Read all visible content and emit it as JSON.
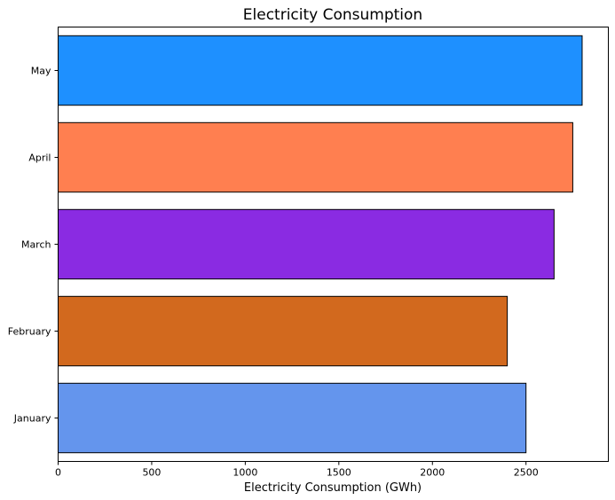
{
  "chart_data": {
    "type": "bar",
    "orientation": "horizontal",
    "title": "Electricity Consumption",
    "xlabel": "Electricity Consumption (GWh)",
    "ylabel": "",
    "categories": [
      "January",
      "February",
      "March",
      "April",
      "May"
    ],
    "values": [
      2500,
      2400,
      2650,
      2750,
      2800
    ],
    "colors": [
      "#6495ED",
      "#D2691E",
      "#8A2BE2",
      "#FF7F50",
      "#1E90FF"
    ],
    "edge_color": "#000000",
    "xlim": [
      0,
      2940
    ],
    "xticks": [
      0,
      500,
      1000,
      1500,
      2000,
      2500
    ],
    "grid": false,
    "legend": "none"
  }
}
